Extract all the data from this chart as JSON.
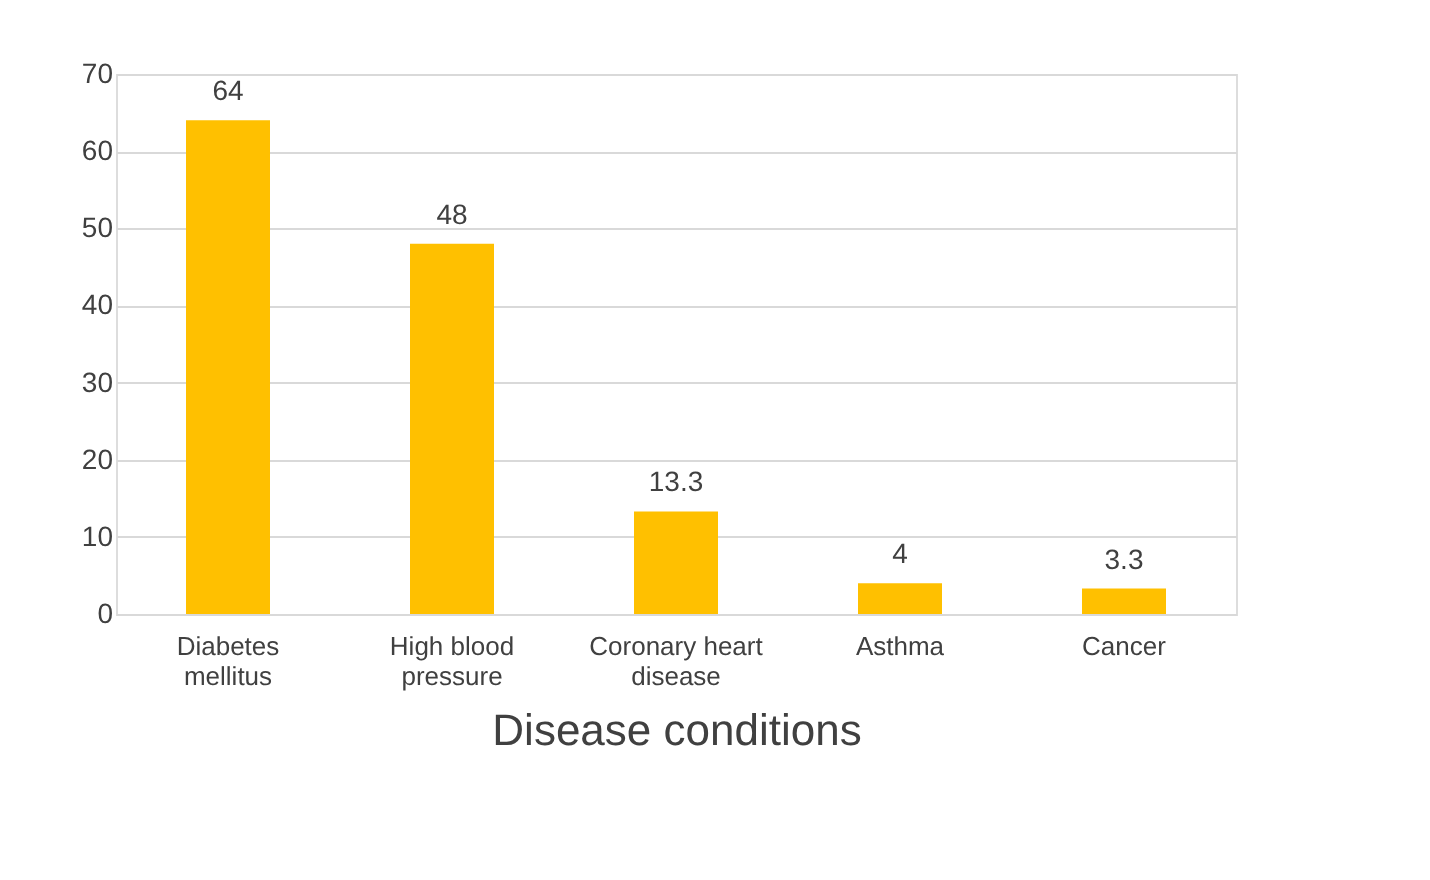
{
  "chart_data": {
    "type": "bar",
    "categories": [
      "Diabetes mellitus",
      "High blood pressure",
      "Coronary heart disease",
      "Asthma",
      "Cancer"
    ],
    "values": [
      64,
      48,
      13.3,
      4,
      3.3
    ],
    "color": "#ffc000",
    "xlabel": "Disease conditions",
    "ylim": [
      0,
      70
    ],
    "yticks": [
      0,
      10,
      20,
      30,
      40,
      50,
      60,
      70
    ],
    "grid": "y",
    "data_labels": true
  }
}
